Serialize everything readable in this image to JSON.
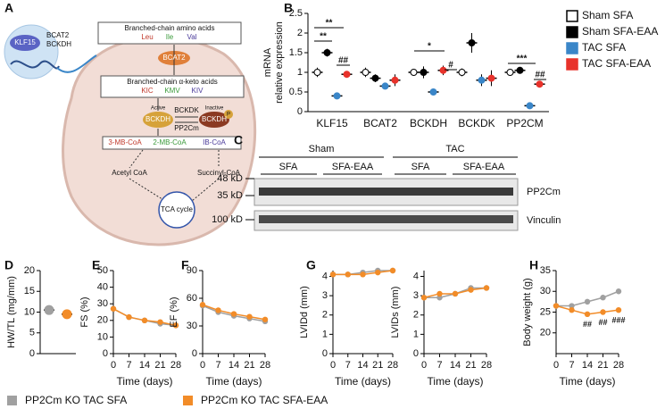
{
  "panel_labels": [
    "A",
    "B",
    "C",
    "D",
    "E",
    "F",
    "G",
    "H"
  ],
  "diagram": {
    "transcription_factor": "KLF15",
    "targets": [
      "BCAT2",
      "BCKDH"
    ],
    "bcaa_title": "Branched-chain amino acids",
    "bcaa": [
      "Leu",
      "Ile",
      "Val"
    ],
    "enzyme1": "BCAT2",
    "bcka_title": "Branched-chain α-keto acids",
    "bcka": [
      "KIC",
      "KMV",
      "KIV"
    ],
    "active_label": "Active",
    "active_enzyme": "BCKDH",
    "kinase": "BCKDK",
    "phosphatase": "PP2Cm",
    "inactive_label": "Inactive",
    "inactive_enzyme": "BCKDH",
    "phospho": "P",
    "coas": [
      "3-MB-CoA",
      "2-MB-CoA",
      "IB-CoA"
    ],
    "acetyl": "Acetyl CoA",
    "succinyl": "Succinyl-CoA",
    "tca": "TCA cycle"
  },
  "blot": {
    "groups": [
      "Sham",
      "TAC"
    ],
    "lanes": [
      "SFA",
      "SFA-EAA",
      "SFA",
      "SFA-EAA"
    ],
    "markers": [
      "48 kD",
      "35 kD",
      "100 kD"
    ],
    "proteins": [
      "PP2Cm",
      "Vinculin"
    ]
  },
  "chart_data": [
    {
      "type": "dot",
      "ylabel": [
        "mRNA",
        "relative expression"
      ],
      "categories": [
        "KLF15",
        "BCAT2",
        "BCKDH",
        "BCKDK",
        "PP2CM"
      ],
      "ylim": [
        0,
        2.5
      ],
      "yticks": [
        0,
        0.5,
        1.0,
        1.5,
        2.0,
        2.5
      ],
      "series": [
        {
          "name": "Sham SFA",
          "color": "#ffffff",
          "values": [
            1.0,
            1.0,
            1.0,
            1.0,
            1.0
          ],
          "errors": [
            0.12,
            0.12,
            0.07,
            0.1,
            0.03
          ]
        },
        {
          "name": "Sham SFA-EAA",
          "color": "#000000",
          "values": [
            1.5,
            0.85,
            1.0,
            1.75,
            1.05
          ],
          "errors": [
            0.1,
            0.1,
            0.15,
            0.25,
            0.07
          ]
        },
        {
          "name": "TAC SFA",
          "color": "#3a86c8",
          "values": [
            0.4,
            0.65,
            0.5,
            0.8,
            0.15
          ],
          "errors": [
            0.04,
            0.08,
            0.03,
            0.15,
            0.04
          ]
        },
        {
          "name": "TAC SFA-EAA",
          "color": "#e8322b",
          "values": [
            0.95,
            0.8,
            1.05,
            0.85,
            0.7
          ],
          "errors": [
            0.08,
            0.15,
            0.12,
            0.2,
            0.08
          ]
        }
      ],
      "annotations": [
        "**",
        "**",
        "##",
        "*",
        "#",
        "***",
        "##"
      ]
    },
    {
      "type": "dot",
      "ylabel": [
        "HW/TL (mg/mm)"
      ],
      "categories": [
        null,
        null
      ],
      "ylim": [
        0,
        20
      ],
      "yticks": [
        0,
        5,
        10,
        15,
        20
      ],
      "series": [
        {
          "color": "#a0a0a0",
          "values": [
            10.5,
            null
          ],
          "errors": [
            0.6,
            null
          ]
        },
        {
          "color": "#f28c28",
          "values": [
            null,
            9.5
          ],
          "errors": [
            null,
            1.0
          ]
        }
      ]
    },
    {
      "type": "line",
      "ylabel": [
        "FS (%)"
      ],
      "xlabel": "Time (days)",
      "x": [
        0,
        7,
        14,
        21,
        28
      ],
      "xlim": [
        0,
        28
      ],
      "xticks": [
        0,
        7,
        14,
        21,
        28
      ],
      "ylim": [
        0,
        50
      ],
      "yticks": [
        0,
        10,
        20,
        30,
        40,
        50
      ],
      "series": [
        {
          "color": "#a0a0a0",
          "values": [
            27,
            22,
            20,
            18,
            17
          ]
        },
        {
          "color": "#f28c28",
          "values": [
            27,
            22,
            20,
            19,
            17
          ]
        }
      ]
    },
    {
      "type": "line",
      "ylabel": [
        "EF (%)"
      ],
      "xlabel": "Time (days)",
      "x": [
        0,
        7,
        14,
        21,
        28
      ],
      "xlim": [
        0,
        28
      ],
      "xticks": [
        0,
        7,
        14,
        21,
        28
      ],
      "ylim": [
        0,
        90
      ],
      "yticks": [
        0,
        30,
        60,
        90
      ],
      "series": [
        {
          "color": "#a0a0a0",
          "values": [
            52,
            45,
            41,
            38,
            35
          ]
        },
        {
          "color": "#f28c28",
          "values": [
            53,
            47,
            43,
            40,
            37
          ]
        }
      ]
    },
    {
      "type": "line",
      "ylabel": [
        "LVIDd (mm)"
      ],
      "xlabel": "Time (days)",
      "x": [
        0,
        7,
        14,
        21,
        28
      ],
      "xlim": [
        0,
        28
      ],
      "xticks": [
        0,
        7,
        14,
        21,
        28
      ],
      "ylim": [
        0,
        4.3
      ],
      "yticks": [
        0,
        1,
        2,
        3,
        4
      ],
      "series": [
        {
          "color": "#a0a0a0",
          "values": [
            4.1,
            4.1,
            4.2,
            4.3,
            4.3
          ]
        },
        {
          "color": "#f28c28",
          "values": [
            4.1,
            4.1,
            4.1,
            4.2,
            4.3
          ]
        }
      ]
    },
    {
      "type": "line",
      "ylabel": [
        "LVIDs (mm)"
      ],
      "xlabel": "Time (days)",
      "x": [
        0,
        7,
        14,
        21,
        28
      ],
      "xlim": [
        0,
        28
      ],
      "xticks": [
        0,
        7,
        14,
        21,
        28
      ],
      "ylim": [
        0,
        4.3
      ],
      "yticks": [
        0,
        1,
        2,
        3,
        4
      ],
      "series": [
        {
          "color": "#a0a0a0",
          "values": [
            2.9,
            2.9,
            3.1,
            3.4,
            3.4
          ]
        },
        {
          "color": "#f28c28",
          "values": [
            2.9,
            3.1,
            3.1,
            3.3,
            3.4
          ]
        }
      ]
    },
    {
      "type": "line",
      "ylabel": [
        "Body weight (g)"
      ],
      "xlabel": "Time (days)",
      "x": [
        0,
        7,
        14,
        21,
        28
      ],
      "xlim": [
        0,
        28
      ],
      "xticks": [
        0,
        7,
        14,
        21,
        28
      ],
      "ylim": [
        15,
        35
      ],
      "yticks": [
        20,
        25,
        30,
        35
      ],
      "series": [
        {
          "color": "#a0a0a0",
          "values": [
            26.5,
            26.5,
            27.5,
            28.5,
            30
          ]
        },
        {
          "color": "#f28c28",
          "values": [
            26.5,
            25.5,
            24.5,
            25,
            25.5
          ]
        }
      ],
      "annotations": [
        "##",
        "##",
        "###"
      ]
    }
  ],
  "legend": [
    {
      "name": "PP2Cm KO TAC SFA",
      "color": "#a0a0a0"
    },
    {
      "name": "PP2Cm KO TAC SFA-EAA",
      "color": "#f28c28"
    }
  ]
}
